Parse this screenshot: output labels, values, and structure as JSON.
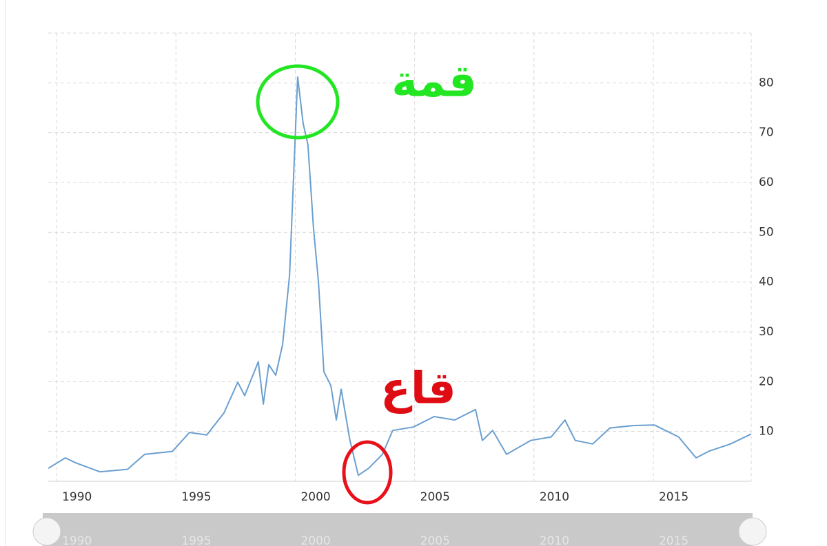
{
  "chart_data": {
    "type": "line",
    "annotations": [
      "قمة",
      "قاع"
    ],
    "x": [
      1989.65,
      1990.37,
      1990.8,
      1991.82,
      1992.97,
      1993.69,
      1994.85,
      1995.57,
      1996.29,
      1997.01,
      1997.59,
      1997.88,
      1998.45,
      1998.66,
      1998.89,
      1999.18,
      1999.47,
      1999.76,
      2000.1,
      2000.33,
      2000.53,
      2000.76,
      2000.97,
      2001.2,
      2001.49,
      2001.72,
      2001.92,
      2002.29,
      2002.64,
      2003.07,
      2003.65,
      2004.08,
      2004.95,
      2005.82,
      2006.68,
      2007.55,
      2007.84,
      2008.27,
      2008.85,
      2009.86,
      2010.72,
      2011.3,
      2011.73,
      2012.46,
      2013.18,
      2014.19,
      2015.05,
      2016.06,
      2016.79,
      2017.36,
      2018.23,
      2019.1
    ],
    "series": [
      {
        "color": "#6a9fcf",
        "values": [
          2.6,
          4.7,
          3.7,
          1.9,
          2.4,
          5.4,
          6,
          9.8,
          9.3,
          13.7,
          19.9,
          17.2,
          24,
          15.5,
          23.4,
          21.3,
          27.5,
          41.4,
          81.2,
          71.8,
          67.6,
          51,
          40,
          22,
          19.2,
          12.3,
          18.5,
          8.2,
          1.2,
          2.6,
          5.4,
          10.2,
          10.9,
          13,
          12.3,
          14.4,
          8.2,
          10.2,
          5.4,
          8.2,
          8.9,
          12.3,
          8.2,
          7.5,
          10.7,
          11.2,
          11.3,
          8.9,
          4.7,
          6.1,
          7.5,
          9.5
        ]
      }
    ],
    "xlim": [
      1989.65,
      2019.1
    ],
    "xticks": [
      1990,
      1995,
      2000,
      2005,
      2010,
      2015
    ],
    "ylim": [
      0,
      90
    ],
    "yticks": [
      10,
      20,
      30,
      40,
      50,
      60,
      70,
      80
    ],
    "grid": true
  }
}
